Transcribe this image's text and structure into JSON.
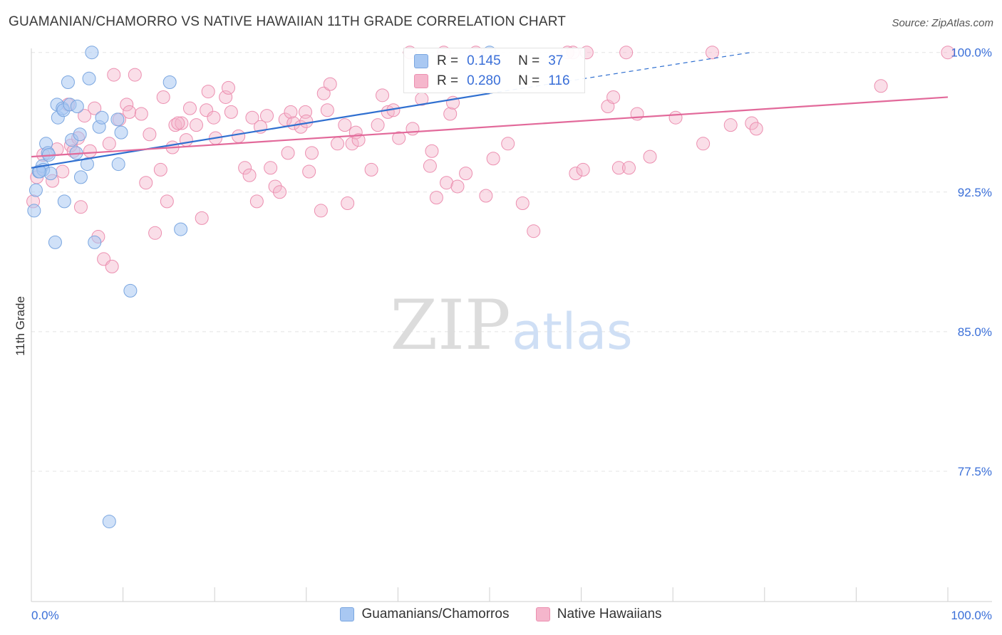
{
  "title": "GUAMANIAN/CHAMORRO VS NATIVE HAWAIIAN 11TH GRADE CORRELATION CHART",
  "source": "Source: ZipAtlas.com",
  "watermark": {
    "zip": "ZIP",
    "atlas": "atlas"
  },
  "colors": {
    "blue_fill": "#a9c8f2",
    "blue_stroke": "#7aa6e0",
    "blue_line": "#2f6fd0",
    "pink_fill": "#f5b6cc",
    "pink_stroke": "#ec8fb0",
    "pink_line": "#e2699a",
    "tick_label": "#3a6fd8",
    "grid": "#e4e4e4"
  },
  "stats": {
    "r_label": "R =",
    "n_label": "N =",
    "series": [
      {
        "r": "0.145",
        "n": "37"
      },
      {
        "r": "0.280",
        "n": "116"
      }
    ]
  },
  "legend": [
    "Guamanians/Chamorros",
    "Native Hawaiians"
  ],
  "chart_data": {
    "type": "scatter",
    "title": "GUAMANIAN/CHAMORRO VS NATIVE HAWAIIAN 11TH GRADE CORRELATION CHART",
    "xlabel": "",
    "ylabel": "11th Grade",
    "xlim": [
      0,
      100
    ],
    "ylim": [
      70.5,
      100.6
    ],
    "x_tick_labels": [
      "0.0%",
      "100.0%"
    ],
    "y_ticks": [
      77.5,
      85.0,
      92.5,
      100.0
    ],
    "y_tick_labels": [
      "77.5%",
      "85.0%",
      "92.5%",
      "100.0%"
    ],
    "grid": true,
    "legend_position": "bottom",
    "series": [
      {
        "name": "Guamanians/Chamorros",
        "r": 0.145,
        "n": 37,
        "trend": {
          "x0": 0,
          "y0": 93.8,
          "x1": 50,
          "y1": 97.8,
          "dashed_to_x": 78.5,
          "dashed_to_y": 100.0
        },
        "points": [
          [
            0.3,
            91.5
          ],
          [
            0.5,
            92.6
          ],
          [
            0.8,
            93.6
          ],
          [
            1.2,
            93.9
          ],
          [
            1.3,
            93.7
          ],
          [
            1.6,
            95.1
          ],
          [
            1.8,
            94.6
          ],
          [
            2.1,
            93.5
          ],
          [
            2.6,
            89.8
          ],
          [
            2.8,
            97.2
          ],
          [
            2.9,
            96.5
          ],
          [
            3.4,
            97.0
          ],
          [
            3.5,
            96.9
          ],
          [
            3.6,
            92.0
          ],
          [
            4.0,
            98.4
          ],
          [
            4.2,
            97.2
          ],
          [
            4.4,
            95.3
          ],
          [
            4.9,
            94.6
          ],
          [
            5.0,
            97.1
          ],
          [
            5.3,
            95.6
          ],
          [
            5.4,
            93.3
          ],
          [
            6.1,
            94.0
          ],
          [
            6.3,
            98.6
          ],
          [
            6.6,
            100.0
          ],
          [
            6.9,
            89.8
          ],
          [
            7.4,
            96.0
          ],
          [
            7.7,
            96.5
          ],
          [
            8.5,
            74.8
          ],
          [
            9.4,
            96.4
          ],
          [
            9.5,
            94.0
          ],
          [
            9.8,
            95.7
          ],
          [
            10.8,
            87.2
          ],
          [
            15.1,
            98.4
          ],
          [
            16.3,
            90.5
          ],
          [
            0.9,
            93.6
          ],
          [
            1.9,
            94.5
          ],
          [
            50.0,
            100.0
          ]
        ]
      },
      {
        "name": "Native Hawaiians",
        "r": 0.28,
        "n": 116,
        "trend": {
          "x0": 0,
          "y0": 94.4,
          "x1": 100,
          "y1": 97.6
        },
        "points": [
          [
            0.2,
            92.0
          ],
          [
            0.6,
            93.3
          ],
          [
            1.3,
            94.5
          ],
          [
            2.3,
            93.1
          ],
          [
            2.8,
            94.8
          ],
          [
            3.4,
            93.6
          ],
          [
            4.0,
            97.2
          ],
          [
            4.3,
            95.0
          ],
          [
            4.6,
            94.7
          ],
          [
            5.1,
            95.4
          ],
          [
            5.4,
            91.7
          ],
          [
            5.8,
            96.6
          ],
          [
            6.4,
            94.7
          ],
          [
            6.9,
            97.0
          ],
          [
            7.3,
            90.1
          ],
          [
            7.9,
            88.9
          ],
          [
            8.5,
            95.1
          ],
          [
            8.8,
            88.5
          ],
          [
            9.0,
            98.8
          ],
          [
            9.6,
            96.4
          ],
          [
            10.4,
            97.2
          ],
          [
            10.7,
            96.8
          ],
          [
            11.3,
            98.8
          ],
          [
            12.0,
            96.7
          ],
          [
            12.5,
            93.0
          ],
          [
            12.9,
            95.6
          ],
          [
            13.5,
            90.3
          ],
          [
            14.1,
            93.7
          ],
          [
            14.4,
            97.6
          ],
          [
            14.8,
            92.0
          ],
          [
            15.4,
            94.9
          ],
          [
            15.7,
            96.1
          ],
          [
            16.4,
            96.2
          ],
          [
            16.9,
            95.3
          ],
          [
            17.3,
            97.0
          ],
          [
            18.0,
            96.1
          ],
          [
            18.6,
            91.1
          ],
          [
            19.1,
            96.9
          ],
          [
            19.3,
            97.9
          ],
          [
            19.9,
            96.5
          ],
          [
            20.1,
            95.4
          ],
          [
            21.2,
            97.6
          ],
          [
            21.5,
            98.1
          ],
          [
            21.8,
            96.8
          ],
          [
            22.6,
            95.5
          ],
          [
            23.3,
            93.8
          ],
          [
            23.8,
            93.4
          ],
          [
            24.1,
            96.5
          ],
          [
            24.6,
            92.0
          ],
          [
            25.0,
            96.0
          ],
          [
            25.7,
            96.6
          ],
          [
            26.1,
            93.8
          ],
          [
            26.6,
            92.8
          ],
          [
            27.1,
            92.5
          ],
          [
            27.7,
            96.4
          ],
          [
            28.0,
            94.6
          ],
          [
            28.3,
            96.8
          ],
          [
            28.6,
            96.2
          ],
          [
            29.4,
            96.0
          ],
          [
            29.9,
            96.8
          ],
          [
            30.3,
            93.6
          ],
          [
            30.6,
            94.6
          ],
          [
            31.6,
            91.5
          ],
          [
            31.9,
            97.8
          ],
          [
            32.3,
            96.9
          ],
          [
            32.6,
            98.3
          ],
          [
            33.4,
            95.1
          ],
          [
            34.2,
            96.1
          ],
          [
            34.5,
            91.9
          ],
          [
            35.0,
            95.1
          ],
          [
            35.4,
            95.7
          ],
          [
            35.7,
            95.3
          ],
          [
            37.1,
            93.7
          ],
          [
            37.8,
            96.1
          ],
          [
            38.3,
            97.7
          ],
          [
            38.9,
            96.8
          ],
          [
            39.5,
            96.9
          ],
          [
            40.1,
            95.4
          ],
          [
            41.3,
            100.0
          ],
          [
            41.6,
            95.9
          ],
          [
            42.6,
            97.5
          ],
          [
            43.5,
            93.9
          ],
          [
            43.7,
            94.7
          ],
          [
            44.2,
            92.2
          ],
          [
            45.3,
            93.0
          ],
          [
            45.7,
            96.7
          ],
          [
            46.0,
            97.3
          ],
          [
            46.5,
            92.8
          ],
          [
            47.4,
            93.5
          ],
          [
            48.5,
            100.0
          ],
          [
            49.6,
            92.3
          ],
          [
            50.4,
            94.3
          ],
          [
            52.0,
            95.1
          ],
          [
            53.6,
            91.9
          ],
          [
            54.8,
            90.4
          ],
          [
            59.1,
            100.0
          ],
          [
            59.4,
            93.5
          ],
          [
            60.2,
            93.7
          ],
          [
            60.6,
            100.0
          ],
          [
            62.9,
            97.1
          ],
          [
            63.5,
            97.6
          ],
          [
            64.1,
            93.8
          ],
          [
            64.9,
            100.0
          ],
          [
            65.2,
            93.8
          ],
          [
            66.1,
            96.7
          ],
          [
            67.5,
            94.4
          ],
          [
            70.3,
            96.5
          ],
          [
            73.3,
            95.1
          ],
          [
            74.3,
            100.0
          ],
          [
            76.3,
            96.1
          ],
          [
            78.6,
            96.2
          ],
          [
            79.1,
            95.9
          ],
          [
            92.7,
            98.2
          ],
          [
            100.0,
            100.0
          ],
          [
            16.0,
            96.2
          ],
          [
            45.0,
            100.0
          ],
          [
            58.5,
            100.0
          ],
          [
            30.0,
            96.3
          ]
        ]
      }
    ]
  }
}
